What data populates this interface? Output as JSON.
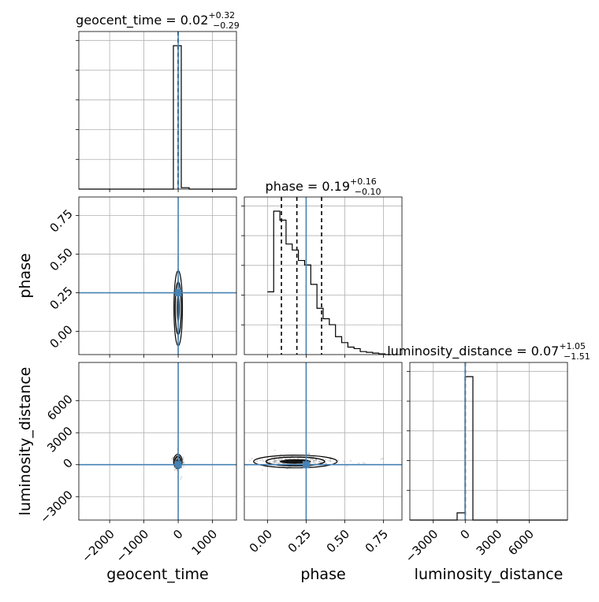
{
  "chart_data": {
    "type": "corner",
    "parameters": [
      "geocent_time",
      "phase",
      "luminosity_distance"
    ],
    "truths": {
      "geocent_time": 0,
      "phase": 0.25,
      "luminosity_distance": 0
    },
    "titles": {
      "geocent_time": {
        "name": "geocent_time",
        "median": "0.02",
        "plus": "+0.32",
        "minus": "−0.29"
      },
      "phase": {
        "name": "phase",
        "median": "0.19",
        "plus": "+0.16",
        "minus": "−0.10"
      },
      "luminosity_distance": {
        "name": "luminosity_distance",
        "median": "0.07",
        "plus": "+1.05",
        "minus": "−1.51"
      }
    },
    "ranges": {
      "geocent_time": [
        -2900,
        1700
      ],
      "phase": [
        -0.15,
        0.87
      ],
      "luminosity_distance": [
        -5200,
        9600
      ]
    },
    "ticks": {
      "geocent_time": [
        "−2000",
        "−1000",
        "0",
        "1000"
      ],
      "geocent_time_values": [
        -2000,
        -1000,
        0,
        1000
      ],
      "phase": [
        "0.00",
        "0.25",
        "0.50",
        "0.75"
      ],
      "phase_values": [
        0,
        0.25,
        0.5,
        0.75
      ],
      "luminosity_distance_y": [
        "−3000",
        "0",
        "3000",
        "6000"
      ],
      "luminosity_distance_y_values": [
        -3000,
        0,
        3000,
        6000
      ],
      "luminosity_distance_x": [
        "−3000",
        "0",
        "3000",
        "6000"
      ],
      "luminosity_distance_x_values": [
        -3000,
        0,
        3000,
        6000
      ]
    },
    "hist_geocent_time": {
      "edges": [
        -2900,
        -2670,
        -2440,
        -2210,
        -1980,
        -1750,
        -1520,
        -1290,
        -1060,
        -830,
        -600,
        -370,
        -140,
        90,
        320,
        550,
        780,
        1010,
        1240,
        1470,
        1700
      ],
      "counts": [
        0,
        0,
        0,
        0,
        0,
        0,
        0,
        0,
        0,
        0,
        0,
        0,
        1.0,
        0.01,
        0,
        0,
        0,
        0,
        0,
        0
      ]
    },
    "quantiles_geocent_time": [
      -0.27,
      0.02,
      0.34
    ],
    "hist_phase": {
      "edges": [
        0.0,
        0.04,
        0.08,
        0.12,
        0.16,
        0.2,
        0.24,
        0.28,
        0.32,
        0.36,
        0.4,
        0.44,
        0.48,
        0.52,
        0.56,
        0.6,
        0.64,
        0.68,
        0.72,
        0.76,
        0.8
      ],
      "counts": [
        0.42,
        0.96,
        0.9,
        0.74,
        0.7,
        0.63,
        0.6,
        0.47,
        0.31,
        0.24,
        0.2,
        0.12,
        0.08,
        0.05,
        0.04,
        0.02,
        0.015,
        0.01,
        0.005,
        0.0
      ]
    },
    "quantiles_phase": [
      0.09,
      0.19,
      0.35
    ],
    "hist_luminosity_distance": {
      "edges": [
        -5200,
        -4460,
        -3720,
        -2980,
        -2240,
        -1500,
        -760,
        -20,
        720,
        1460,
        2200,
        2940,
        3680,
        4420,
        5160,
        5900,
        6640,
        7380,
        8120,
        8860,
        9600
      ],
      "counts": [
        0,
        0,
        0,
        0,
        0,
        0,
        0.05,
        1.0,
        0,
        0,
        0,
        0,
        0,
        0,
        0,
        0,
        0,
        0,
        0,
        0
      ]
    },
    "quantiles_luminosity_distance": [
      -1.44,
      0.07,
      1.12
    ],
    "contours": {
      "phase_vs_geocent_time": {
        "cx": 0.12,
        "cy": 0.15,
        "sx": 0.035,
        "sy": 0.09
      },
      "luminosity_distance_vs_geocent_time": {
        "cx": -10,
        "cy": 300,
        "sx": 40,
        "sy": 250
      },
      "luminosity_distance_vs_phase": {
        "cx": 0.18,
        "cy": 300,
        "sx": 0.1,
        "sy": 220
      }
    }
  }
}
